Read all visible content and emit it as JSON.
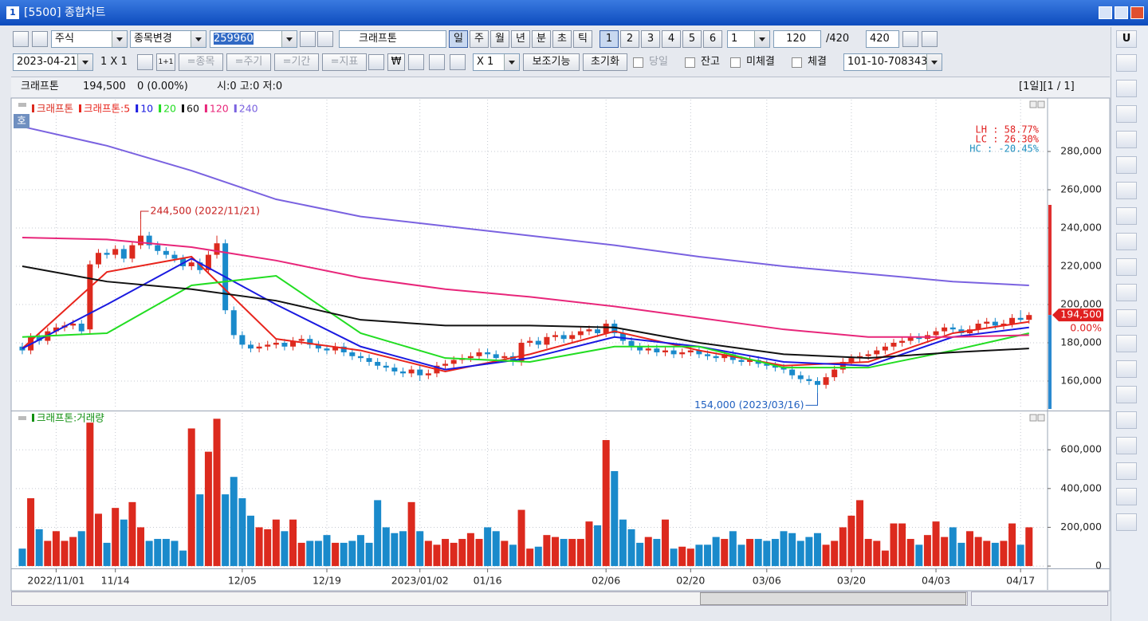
{
  "window": {
    "icon": "1",
    "title": "[5500] 종합차트"
  },
  "toolbar1": {
    "market": "주식",
    "change": "종목변경",
    "code": "259960",
    "name": "크래프톤",
    "periods": [
      "일",
      "주",
      "월",
      "년",
      "분",
      "초",
      "틱"
    ],
    "numbers": [
      "1",
      "2",
      "3",
      "4",
      "5",
      "6"
    ],
    "unit": "1",
    "count": "120",
    "total": "/420",
    "max": "420"
  },
  "toolbar2": {
    "date": "2023-04-21",
    "layout": "1 X 1",
    "split": "1+1",
    "links": [
      "=종목",
      "=주기",
      "=기간",
      "=지표"
    ],
    "currency": "₩",
    "multiplier": "X 1",
    "buttons": [
      "보조기능",
      "초기화"
    ],
    "checks": [
      "당일",
      "잔고",
      "미체결",
      "체결"
    ],
    "account": "101-10-708343"
  },
  "info": {
    "name": "크래프톤",
    "price": "194,500",
    "change": "0 (0.00%)",
    "ohl": "시:0 고:0 저:0",
    "page": "[1일][1 / 1]"
  },
  "side": {
    "button": "U"
  },
  "chart_data": [
    {
      "type": "candlestick",
      "name": "크래프톤",
      "tag": "호",
      "up_color": "#dc2a1e",
      "down_color": "#1a8acb",
      "open": [
        178000,
        176000,
        183000,
        181000,
        186000,
        188000,
        189000,
        190000,
        187000,
        221000,
        227000,
        226000,
        229000,
        224000,
        231000,
        236000,
        231000,
        228000,
        226000,
        224000,
        220000,
        222000,
        218000,
        226000,
        232000,
        197000,
        184000,
        179000,
        177000,
        178000,
        179000,
        180000,
        178000,
        181000,
        182000,
        179000,
        177000,
        176000,
        178000,
        175000,
        173000,
        172000,
        170000,
        168000,
        167000,
        165000,
        164000,
        166000,
        163000,
        164000,
        168000,
        169000,
        171000,
        172000,
        173000,
        175000,
        174000,
        172000,
        173000,
        170000,
        180000,
        181000,
        179000,
        183000,
        184000,
        182000,
        184000,
        186000,
        187000,
        185000,
        190000,
        185000,
        181000,
        178000,
        176000,
        177000,
        175000,
        176000,
        174000,
        175000,
        176000,
        174000,
        173000,
        172000,
        174000,
        171000,
        170000,
        171000,
        169000,
        168000,
        167000,
        166000,
        163000,
        161000,
        160000,
        158000,
        162000,
        166000,
        170000,
        172000,
        173000,
        174000,
        176000,
        178000,
        180000,
        181000,
        183000,
        182000,
        184000,
        186000,
        188000,
        187000,
        185000,
        187000,
        190000,
        191000,
        189000,
        190000,
        193000,
        192000
      ],
      "high": [
        180000,
        185000,
        185000,
        188000,
        190000,
        191000,
        192000,
        192000,
        223000,
        229000,
        229000,
        231000,
        231000,
        233000,
        244500,
        238000,
        233000,
        230000,
        228000,
        226000,
        224000,
        224000,
        228000,
        236000,
        234000,
        199000,
        186000,
        181000,
        180000,
        181000,
        182000,
        182000,
        183000,
        184000,
        184000,
        181000,
        179000,
        180000,
        180000,
        177000,
        175000,
        174000,
        172000,
        170000,
        169000,
        167000,
        168000,
        168000,
        166000,
        170000,
        171000,
        173000,
        174000,
        175000,
        177000,
        177000,
        176000,
        175000,
        175000,
        182000,
        183000,
        183000,
        185000,
        186000,
        186000,
        186000,
        188000,
        189000,
        189000,
        192000,
        192000,
        187000,
        183000,
        180000,
        179000,
        179000,
        178000,
        178000,
        177000,
        178000,
        178000,
        176000,
        175000,
        176000,
        176000,
        173000,
        173000,
        173000,
        171000,
        170000,
        169000,
        168000,
        165000,
        163000,
        162000,
        164000,
        168000,
        172000,
        174000,
        175000,
        176000,
        178000,
        180000,
        182000,
        183000,
        185000,
        185000,
        186000,
        188000,
        190000,
        190000,
        189000,
        189000,
        192000,
        193000,
        193000,
        192000,
        195000,
        197000,
        196000
      ],
      "low": [
        174000,
        174000,
        179000,
        179000,
        184000,
        186000,
        187000,
        184000,
        185000,
        219000,
        224000,
        224000,
        222000,
        222000,
        229000,
        229000,
        226000,
        224000,
        222000,
        218000,
        218000,
        216000,
        216000,
        224000,
        195000,
        182000,
        177000,
        175000,
        175000,
        176000,
        177000,
        176000,
        176000,
        179000,
        177000,
        175000,
        174000,
        174000,
        173000,
        171000,
        170000,
        168000,
        166000,
        165000,
        163000,
        162000,
        162000,
        160000,
        161000,
        162000,
        166000,
        167000,
        169000,
        170000,
        171000,
        172000,
        170000,
        170000,
        168000,
        168000,
        178000,
        177000,
        177000,
        181000,
        180000,
        180000,
        182000,
        184000,
        183000,
        183000,
        183000,
        179000,
        176000,
        174000,
        174000,
        173000,
        173000,
        172000,
        172000,
        173000,
        172000,
        171000,
        170000,
        170000,
        169000,
        168000,
        168000,
        167000,
        166000,
        165000,
        164000,
        161000,
        159000,
        158000,
        154000,
        156000,
        160000,
        164000,
        168000,
        170000,
        171000,
        172000,
        174000,
        176000,
        178000,
        179000,
        180000,
        180000,
        182000,
        184000,
        185000,
        183000,
        183000,
        185000,
        188000,
        187000,
        187000,
        188000,
        190000,
        190000
      ],
      "close": [
        176000,
        183000,
        181000,
        186000,
        188000,
        189000,
        190000,
        186000,
        221000,
        227000,
        226000,
        229000,
        224000,
        231000,
        236000,
        231000,
        228000,
        226000,
        224000,
        220000,
        222000,
        218000,
        226000,
        232000,
        197000,
        184000,
        179000,
        177000,
        178000,
        179000,
        180000,
        178000,
        181000,
        182000,
        179000,
        177000,
        176000,
        178000,
        175000,
        173000,
        172000,
        170000,
        168000,
        167000,
        165000,
        164000,
        166000,
        163000,
        164000,
        168000,
        169000,
        171000,
        172000,
        173000,
        175000,
        174000,
        172000,
        173000,
        170000,
        180000,
        181000,
        179000,
        183000,
        184000,
        182000,
        184000,
        186000,
        187000,
        185000,
        190000,
        185000,
        181000,
        178000,
        176000,
        177000,
        175000,
        176000,
        174000,
        175000,
        176000,
        174000,
        173000,
        172000,
        174000,
        171000,
        170000,
        171000,
        169000,
        168000,
        167000,
        166000,
        163000,
        161000,
        160000,
        158000,
        162000,
        166000,
        170000,
        172000,
        173000,
        174000,
        176000,
        178000,
        180000,
        181000,
        183000,
        182000,
        184000,
        186000,
        188000,
        187000,
        185000,
        187000,
        190000,
        191000,
        189000,
        190000,
        193000,
        192000,
        194500
      ],
      "ma_x": [
        0,
        10,
        20,
        30,
        40,
        50,
        60,
        70,
        80,
        90,
        100,
        110,
        119
      ],
      "series": [
        {
          "name": "크래프톤:5",
          "color": "#e8241c",
          "values": [
            177000,
            217000,
            225000,
            182000,
            176000,
            165000,
            174000,
            186000,
            176000,
            168000,
            170000,
            185000,
            191000
          ]
        },
        {
          "name": "10",
          "color": "#1a1ae0",
          "values": [
            177000,
            200000,
            224000,
            200000,
            178000,
            166000,
            172000,
            183000,
            178000,
            170000,
            168000,
            183000,
            188000
          ]
        },
        {
          "name": "20",
          "color": "#22dd22",
          "values": [
            183000,
            185000,
            210000,
            215000,
            185000,
            172000,
            170000,
            178000,
            178000,
            167000,
            167000,
            176000,
            185000
          ]
        },
        {
          "name": "60",
          "color": "#111111",
          "values": [
            220000,
            212000,
            208000,
            202000,
            192000,
            189000,
            189000,
            188000,
            180000,
            174000,
            172000,
            175000,
            177000
          ]
        },
        {
          "name": "120",
          "color": "#e8267a",
          "values": [
            235000,
            234000,
            230000,
            223000,
            214000,
            208000,
            204000,
            199000,
            193000,
            187000,
            183000,
            183000,
            184000
          ]
        },
        {
          "name": "240",
          "color": "#7a62e0",
          "values": [
            293000,
            283000,
            270000,
            255000,
            246000,
            241000,
            236000,
            231000,
            225000,
            220000,
            216000,
            212000,
            210000
          ]
        }
      ],
      "stats": [
        {
          "text": "LH :  58.77%",
          "color": "#e02020"
        },
        {
          "text": "LC :  26.30%",
          "color": "#e02020"
        },
        {
          "text": "HC : -20.45%",
          "color": "#2090c0"
        }
      ],
      "annotations": [
        {
          "text": "244,500 (2022/11/21)",
          "index": 14,
          "value": 244500,
          "color": "#c82020"
        },
        {
          "text": "154,000 (2023/03/16)",
          "index": 94,
          "value": 154000,
          "color": "#2060c0"
        }
      ],
      "last_price": {
        "value": 194500,
        "label": "194,500",
        "change": "0.00%"
      },
      "xlim": [
        -0.75,
        121
      ],
      "ylim": [
        145400,
        307100
      ],
      "yticks": [
        {
          "value": 160000,
          "label": "160,000"
        },
        {
          "value": 180000,
          "label": "180,000"
        },
        {
          "value": 200000,
          "label": "200,000"
        },
        {
          "value": 220000,
          "label": "220,000"
        },
        {
          "value": 240000,
          "label": "240,000"
        },
        {
          "value": 260000,
          "label": "260,000"
        },
        {
          "value": 280000,
          "label": "280,000"
        }
      ],
      "grid": true
    },
    {
      "type": "volume",
      "name": "크래프톤:거래량",
      "legend_color": "#109010",
      "values": [
        90000,
        350000,
        190000,
        130000,
        180000,
        130000,
        150000,
        180000,
        740000,
        270000,
        120000,
        300000,
        240000,
        330000,
        200000,
        130000,
        140000,
        140000,
        130000,
        80000,
        710000,
        370000,
        590000,
        760000,
        370000,
        460000,
        350000,
        260000,
        200000,
        190000,
        240000,
        180000,
        240000,
        120000,
        130000,
        130000,
        160000,
        120000,
        120000,
        130000,
        160000,
        120000,
        340000,
        200000,
        170000,
        180000,
        330000,
        180000,
        130000,
        110000,
        140000,
        120000,
        140000,
        170000,
        140000,
        200000,
        180000,
        130000,
        110000,
        290000,
        90000,
        100000,
        160000,
        150000,
        140000,
        140000,
        140000,
        230000,
        210000,
        650000,
        490000,
        240000,
        190000,
        120000,
        150000,
        140000,
        240000,
        90000,
        100000,
        90000,
        110000,
        110000,
        150000,
        140000,
        180000,
        110000,
        140000,
        140000,
        130000,
        140000,
        180000,
        170000,
        130000,
        150000,
        170000,
        110000,
        130000,
        200000,
        260000,
        340000,
        140000,
        130000,
        80000,
        220000,
        220000,
        140000,
        110000,
        160000,
        230000,
        150000,
        200000,
        120000,
        180000,
        150000,
        130000,
        120000,
        130000,
        220000,
        110000,
        200000
      ],
      "xlim": [
        -0.75,
        121
      ],
      "ylim": [
        -12000,
        790000
      ],
      "yticks": [
        0,
        {
          "value": 200000,
          "label": "200,000"
        },
        {
          "value": 400000,
          "label": "400,000"
        },
        {
          "value": 600000,
          "label": "600,000"
        }
      ],
      "xticks": [
        {
          "value": 4,
          "label": "2022/11/01"
        },
        {
          "value": 11,
          "label": "11/14"
        },
        {
          "value": 26,
          "label": "12/05"
        },
        {
          "value": 36,
          "label": "12/19"
        },
        {
          "value": 47,
          "label": "2023/01/02"
        },
        {
          "value": 55,
          "label": "01/16"
        },
        {
          "value": 69,
          "label": "02/06"
        },
        {
          "value": 79,
          "label": "02/20"
        },
        {
          "value": 88,
          "label": "03/06"
        },
        {
          "value": 98,
          "label": "03/20"
        },
        {
          "value": 108,
          "label": "04/03"
        },
        {
          "value": 118,
          "label": "04/17"
        }
      ],
      "grid": true
    }
  ]
}
